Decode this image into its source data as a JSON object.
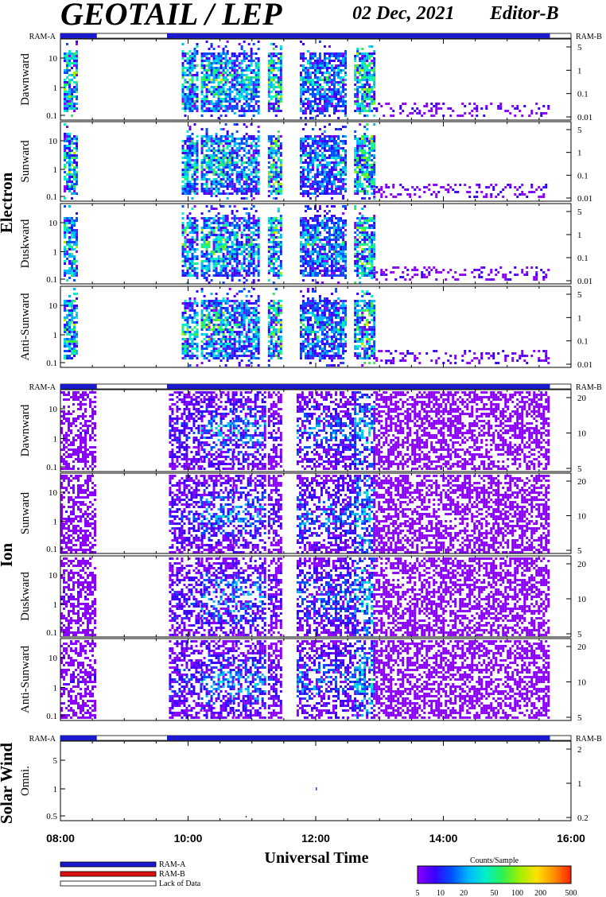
{
  "header": {
    "title": "GEOTAIL / LEP",
    "date": "02 Dec, 2021",
    "editor": "Editor-B"
  },
  "colors": {
    "ram_a": "#1a1acc",
    "ram_b": "#dd1111",
    "lack_of_data": "#ffffff",
    "colorbar": [
      "#8b00ff",
      "#3a00ff",
      "#0050ff",
      "#00b8ff",
      "#00f0c8",
      "#30f050",
      "#a0f000",
      "#ffe000",
      "#ff9000",
      "#ff2000"
    ]
  },
  "chart_data": {
    "type": "heatmap",
    "xlabel": "Universal Time",
    "x_ticks": [
      "08:00",
      "10:00",
      "12:00",
      "14:00",
      "16:00"
    ],
    "xlim_hours": [
      8,
      16
    ],
    "ram_a_intervals_hours": [
      [
        8.0,
        8.57
      ],
      [
        9.67,
        15.67
      ]
    ],
    "groups": [
      {
        "name": "Electron",
        "ram_left": "RAM-A",
        "ram_right": "RAM-B",
        "panels": [
          {
            "name": "Dawnward",
            "left_ticks": [
              "10",
              "1",
              "0.1"
            ],
            "right_ticks": [
              "5",
              "1",
              "0.1",
              "0.01"
            ]
          },
          {
            "name": "Sunward",
            "left_ticks": [
              "10",
              "1",
              "0.1"
            ],
            "right_ticks": [
              "5",
              "1",
              "0.1",
              "0.01"
            ]
          },
          {
            "name": "Duskward",
            "left_ticks": [
              "10",
              "1",
              "0.1"
            ],
            "right_ticks": [
              "5",
              "1",
              "0.1",
              "0.01"
            ]
          },
          {
            "name": "Anti-Sunward",
            "left_ticks": [
              "10",
              "1",
              "0.1"
            ],
            "right_ticks": [
              "5",
              "1",
              "0.1",
              "0.01"
            ]
          }
        ]
      },
      {
        "name": "Ion",
        "ram_left": "RAM-A",
        "ram_right": "RAM-B",
        "panels": [
          {
            "name": "Dawnward",
            "left_ticks": [
              "10",
              "1",
              "0.1"
            ],
            "right_ticks": [
              "20",
              "10",
              "5"
            ]
          },
          {
            "name": "Sunward",
            "left_ticks": [
              "10",
              "1",
              "0.1"
            ],
            "right_ticks": [
              "20",
              "10",
              "5"
            ]
          },
          {
            "name": "Duskward",
            "left_ticks": [
              "10",
              "1",
              "0.1"
            ],
            "right_ticks": [
              "20",
              "10",
              "5"
            ]
          },
          {
            "name": "Anti-Sunward",
            "left_ticks": [
              "10",
              "1",
              "0.1"
            ],
            "right_ticks": [
              "20",
              "10",
              "5"
            ]
          }
        ]
      },
      {
        "name": "Solar Wind",
        "ram_left": "RAM-A",
        "ram_right": "RAM-B",
        "panels": [
          {
            "name": "Omni.",
            "left_ticks": [
              "5",
              "1",
              "0.5"
            ],
            "right_ticks": [
              "2",
              "1",
              "0.2"
            ]
          }
        ]
      }
    ],
    "legend": [
      {
        "label": "RAM-A"
      },
      {
        "label": "RAM-B"
      },
      {
        "label": "Lack of Data"
      }
    ],
    "colorbar": {
      "title": "Counts/Sample",
      "ticks": [
        "5",
        "10",
        "20",
        "50",
        "100",
        "200",
        "500"
      ]
    }
  }
}
